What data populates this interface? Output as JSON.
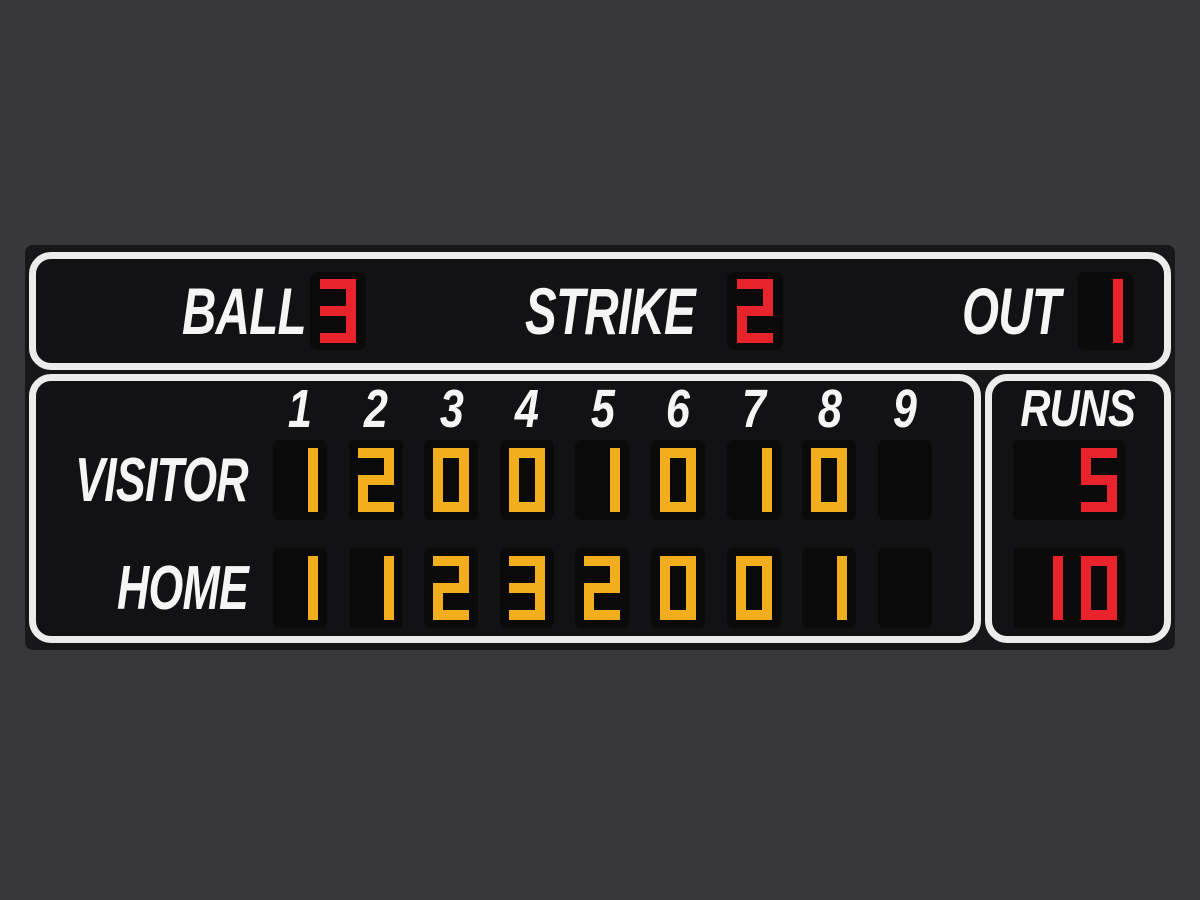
{
  "colors": {
    "background": "#38383b",
    "frame": "#17171a",
    "panel_bg": "#121214",
    "border_white": "#ececec",
    "cell_bg": "#0a0a0b",
    "label_white": "#f5f5f5",
    "red": "#e8232b",
    "amber": "#f2ae1c"
  },
  "count_panel": {
    "ball_label": "BALL",
    "ball_value": "3",
    "strike_label": "STRIKE",
    "strike_value": "2",
    "out_label": "OUT",
    "out_value": "1"
  },
  "innings_panel": {
    "columns": [
      "1",
      "2",
      "3",
      "4",
      "5",
      "6",
      "7",
      "8",
      "9"
    ],
    "rows": [
      {
        "team": "VISITOR",
        "scores": [
          "1",
          "2",
          "0",
          "0",
          "1",
          "0",
          "1",
          "0",
          ""
        ]
      },
      {
        "team": "HOME",
        "scores": [
          "1",
          "1",
          "2",
          "3",
          "2",
          "0",
          "0",
          "1",
          ""
        ]
      }
    ]
  },
  "runs_panel": {
    "label": "RUNS",
    "visitor_runs": "5",
    "home_runs": "10"
  }
}
